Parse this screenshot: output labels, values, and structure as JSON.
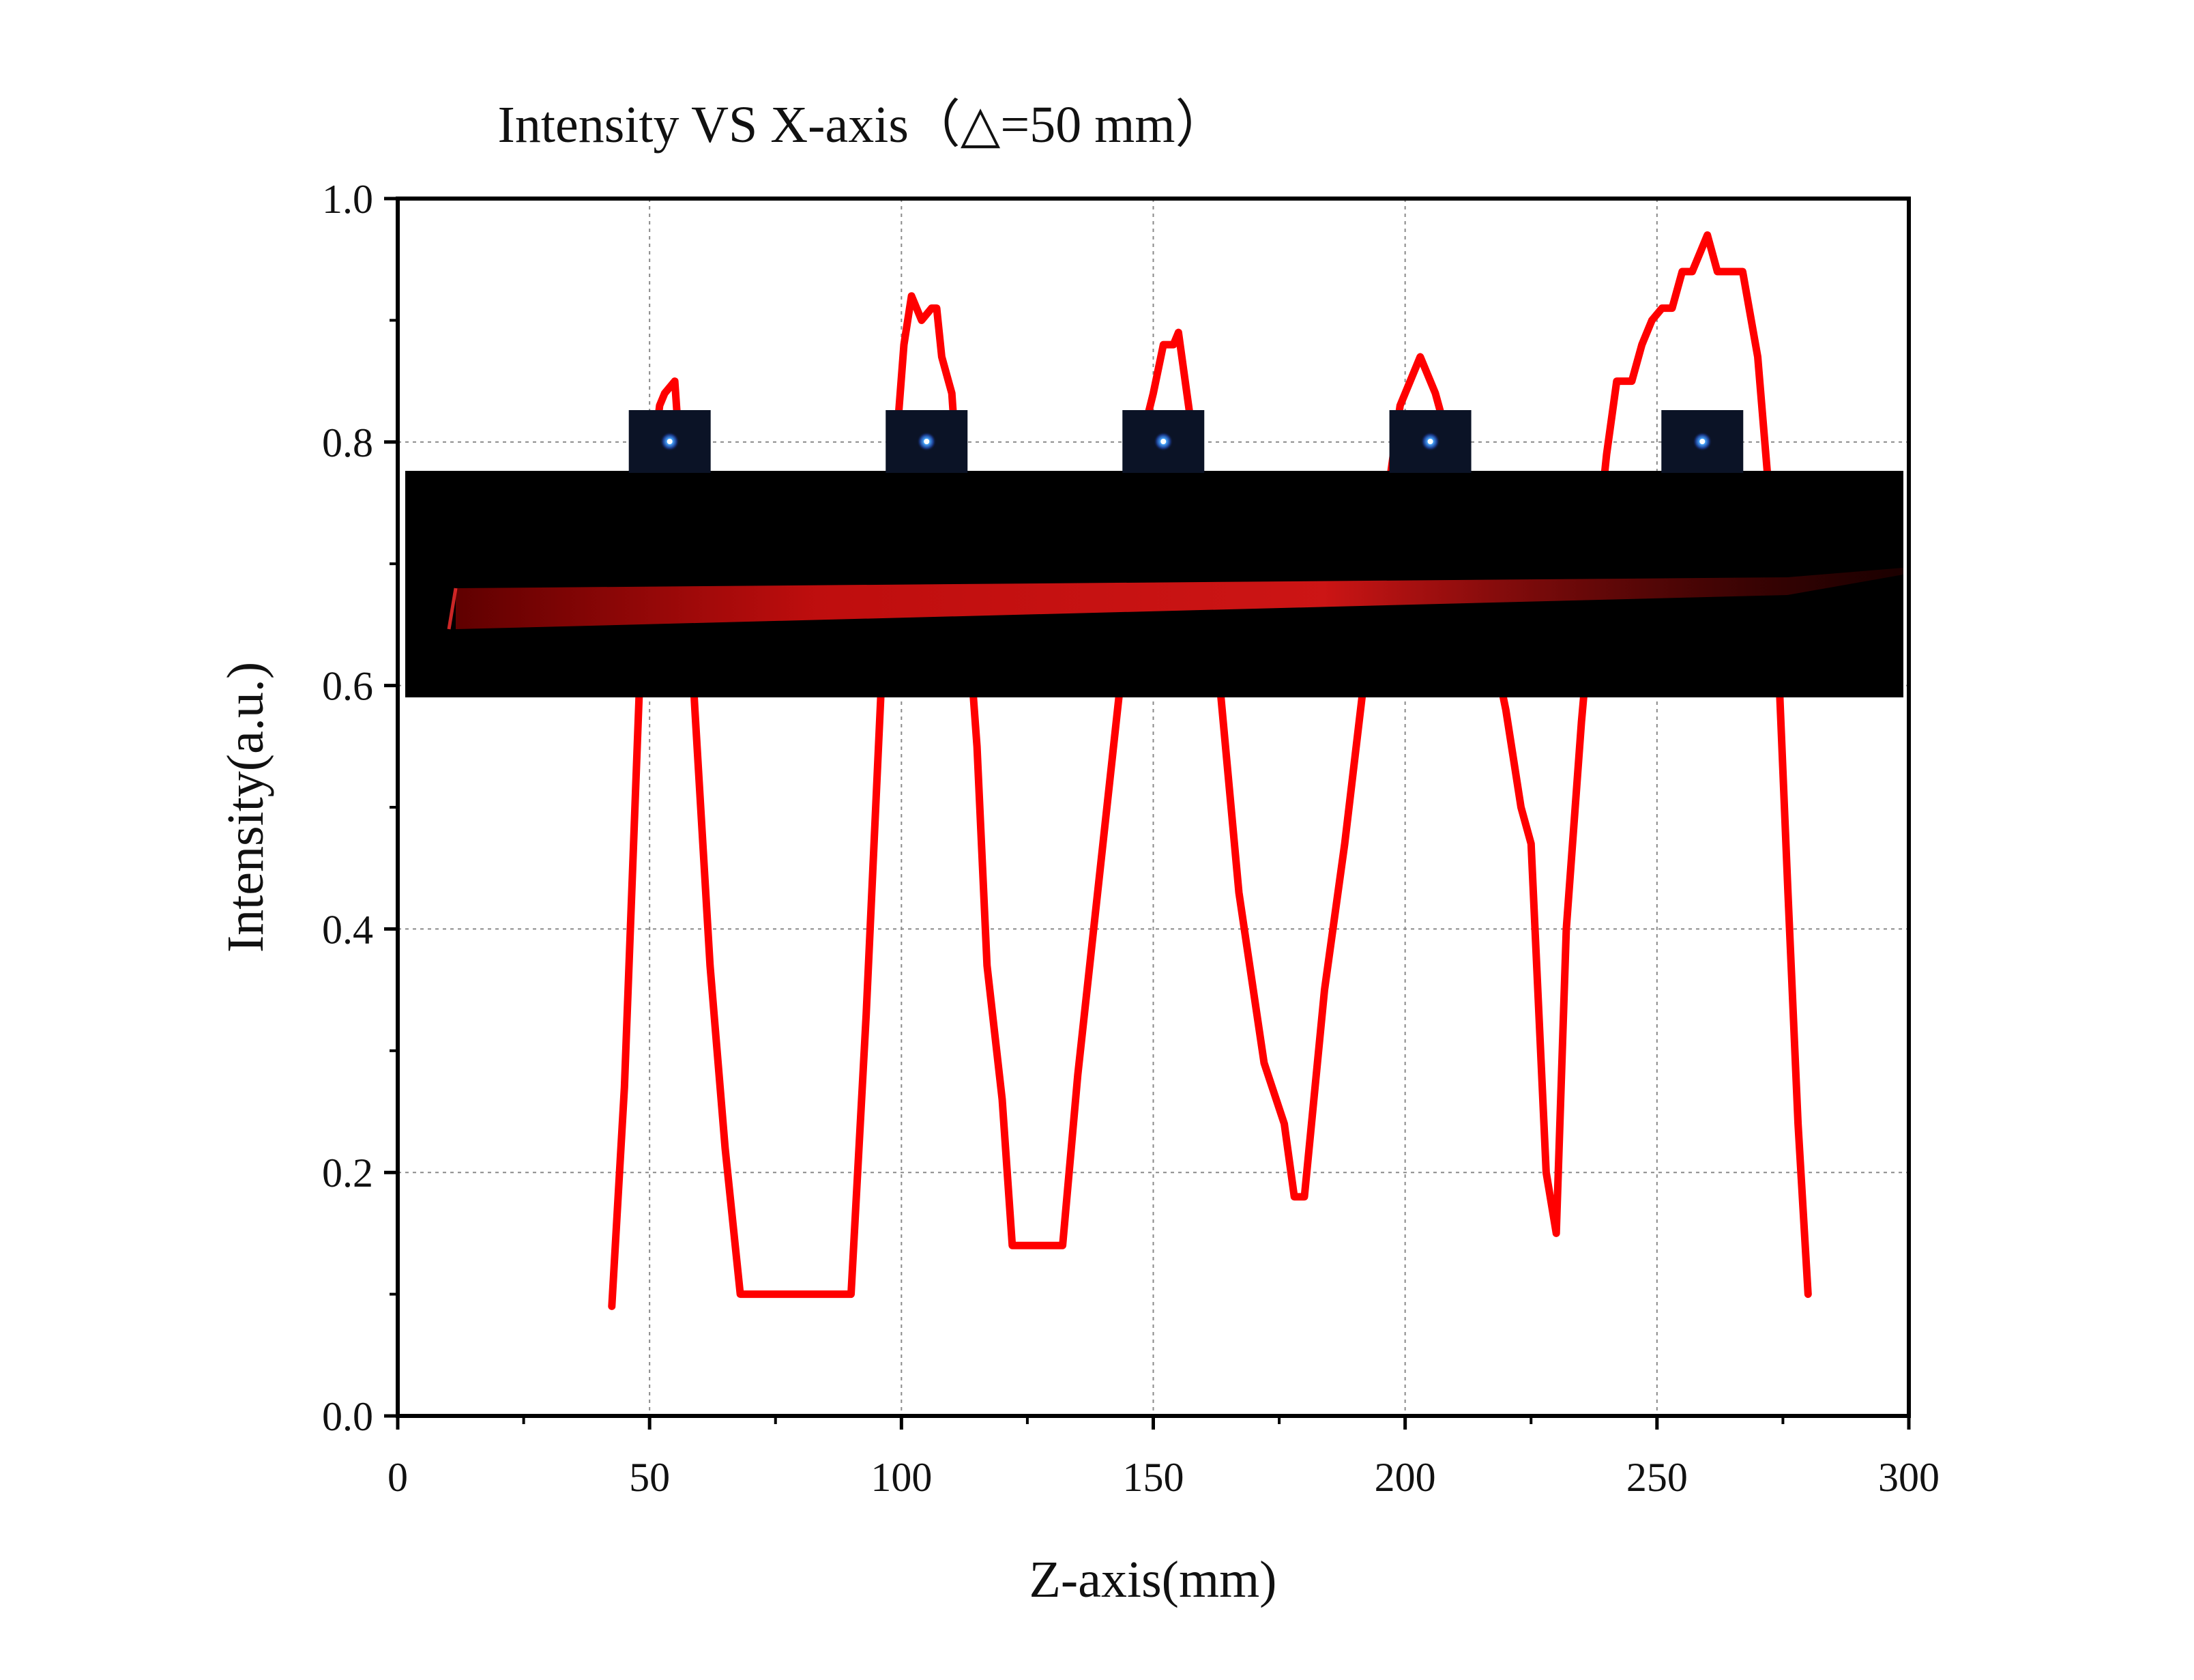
{
  "chart_data": {
    "type": "line",
    "title": "Intensity VS X-axis（△=50 mm）",
    "xlabel": "Z-axis(mm)",
    "ylabel": "Intensity(a.u.)",
    "xlim": [
      0,
      300
    ],
    "ylim": [
      0.0,
      1.0
    ],
    "x_ticks": [
      0,
      50,
      100,
      150,
      200,
      250,
      300
    ],
    "y_ticks": [
      0.0,
      0.2,
      0.4,
      0.6,
      0.8,
      1.0
    ],
    "x_tick_labels": [
      "0",
      "50",
      "100",
      "150",
      "200",
      "250",
      "300"
    ],
    "y_tick_labels": [
      "0.0",
      "0.2",
      "0.4",
      "0.6",
      "0.8",
      "1.0"
    ],
    "grid": true,
    "legend": "none",
    "series": [
      {
        "color": "#ff0000",
        "x": [
          42.5,
          45,
          48,
          50,
          52,
          53,
          55,
          57,
          59,
          62,
          65,
          68,
          90,
          93,
          96,
          99,
          100.5,
          102,
          104,
          106,
          107,
          108,
          110,
          112,
          115,
          117,
          120,
          122,
          127,
          132,
          135,
          140,
          145,
          147,
          150,
          152,
          154,
          155,
          157,
          160,
          163,
          167,
          172,
          176,
          178,
          180,
          184,
          188,
          192,
          196,
          199,
          203,
          206,
          208,
          210,
          214,
          217,
          220,
          223,
          225,
          228,
          230,
          232,
          235,
          238,
          240,
          242,
          243,
          245,
          247,
          249,
          251,
          253,
          255,
          257,
          260,
          262,
          264,
          267,
          270,
          272,
          274,
          276,
          278,
          280
        ],
        "y": [
          0.09,
          0.27,
          0.6,
          0.76,
          0.83,
          0.84,
          0.85,
          0.73,
          0.58,
          0.37,
          0.22,
          0.1,
          0.1,
          0.33,
          0.6,
          0.8,
          0.88,
          0.92,
          0.9,
          0.91,
          0.91,
          0.87,
          0.84,
          0.72,
          0.55,
          0.37,
          0.26,
          0.14,
          0.14,
          0.14,
          0.28,
          0.47,
          0.66,
          0.79,
          0.84,
          0.88,
          0.88,
          0.89,
          0.83,
          0.74,
          0.61,
          0.43,
          0.29,
          0.24,
          0.18,
          0.18,
          0.35,
          0.47,
          0.61,
          0.74,
          0.83,
          0.87,
          0.84,
          0.81,
          0.79,
          0.72,
          0.64,
          0.58,
          0.5,
          0.47,
          0.2,
          0.15,
          0.4,
          0.57,
          0.71,
          0.79,
          0.85,
          0.85,
          0.85,
          0.88,
          0.9,
          0.91,
          0.91,
          0.94,
          0.94,
          0.97,
          0.94,
          0.94,
          0.94,
          0.87,
          0.77,
          0.63,
          0.43,
          0.24,
          0.1
        ]
      }
    ],
    "insets": {
      "beam_strip": "propagation-beam-image",
      "spot_x_positions": [
        54,
        105,
        152,
        205,
        259
      ]
    }
  }
}
